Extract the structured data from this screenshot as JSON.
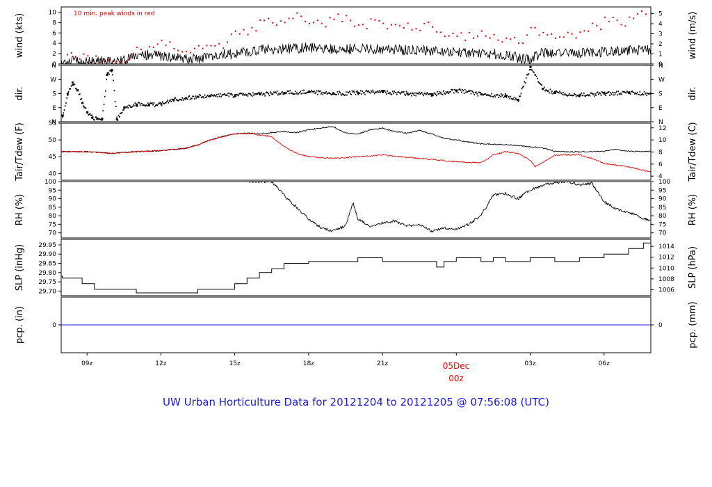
{
  "figure": {
    "title": "UW Urban Horticulture Data for 20121204  to  20121205 @ 07:56:08  (UTC)",
    "date_label": "05Dec",
    "date_sublabel": "00z",
    "colors": {
      "main": "#000000",
      "accent": "#e00000",
      "precip": "#1a1ad8",
      "title": "#1a1ad8"
    }
  },
  "x_axis": {
    "ticks": [
      {
        "label": "09z",
        "h": 9
      },
      {
        "label": "12z",
        "h": 12
      },
      {
        "label": "15z",
        "h": 15
      },
      {
        "label": "18z",
        "h": 18
      },
      {
        "label": "21z",
        "h": 21
      },
      {
        "label": "03z",
        "h": 27
      },
      {
        "label": "06z",
        "h": 30
      }
    ],
    "range_hours": [
      7.95,
      31.9
    ]
  },
  "chart_data": [
    {
      "type": "line",
      "id": "wind",
      "ylabel": "wind (kts)",
      "ylabel_right": "wind (m/s)",
      "annotation": "10 min. peak winds in red",
      "ylim": [
        0,
        11
      ],
      "ylim_right": [
        0,
        5.66
      ],
      "yticks": [
        0,
        2,
        4,
        6,
        8,
        10
      ],
      "yticks_right": [
        0,
        1,
        2,
        3,
        4,
        5
      ],
      "series": [
        {
          "style": "line",
          "color": "#000000",
          "x": [
            7.95,
            8.5,
            9.0,
            9.5,
            10.0,
            10.5,
            11.0,
            11.5,
            12.0,
            12.5,
            13.0,
            13.5,
            14.0,
            14.5,
            15.0,
            15.5,
            16.0,
            17.0,
            18.0,
            19.0,
            20.0,
            21.0,
            22.0,
            23.0,
            24.0,
            25.0,
            26.0,
            26.5,
            27.0,
            27.5,
            28.0,
            29.0,
            30.0,
            31.0,
            31.9
          ],
          "y": [
            0.4,
            0.6,
            0.3,
            0.5,
            0.4,
            0.6,
            1.5,
            1.8,
            1.5,
            1.2,
            0.9,
            1.0,
            1.4,
            1.8,
            2.0,
            2.4,
            2.7,
            3.0,
            3.1,
            2.9,
            3.0,
            2.8,
            2.7,
            2.5,
            2.3,
            2.1,
            1.8,
            1.2,
            0.8,
            2.3,
            2.0,
            2.2,
            2.3,
            2.6,
            2.8
          ]
        },
        {
          "style": "points",
          "color": "#e00000",
          "x": [
            8.2,
            8.7,
            9.2,
            9.7,
            10.2,
            10.7,
            11.2,
            11.7,
            12.2,
            12.7,
            13.2,
            13.7,
            14.2,
            14.7,
            15.2,
            15.7,
            16.2,
            16.7,
            17.2,
            17.7,
            18.2,
            18.7,
            19.2,
            19.7,
            20.2,
            20.7,
            21.2,
            21.7,
            22.2,
            22.7,
            23.2,
            23.7,
            24.2,
            24.7,
            25.2,
            25.7,
            26.2,
            26.7,
            27.2,
            27.7,
            28.2,
            28.7,
            29.2,
            29.7,
            30.2,
            30.7,
            31.2,
            31.7
          ],
          "y": [
            1.8,
            1.0,
            0.6,
            0.9,
            0.5,
            0.8,
            2.8,
            3.2,
            3.6,
            2.6,
            2.2,
            3.0,
            3.5,
            4.2,
            5.8,
            7.0,
            8.4,
            7.5,
            8.8,
            9.2,
            8.0,
            7.2,
            9.6,
            8.4,
            7.6,
            8.5,
            6.8,
            7.4,
            6.6,
            7.8,
            6.2,
            5.4,
            6.0,
            5.0,
            5.4,
            4.6,
            4.8,
            4.0,
            7.0,
            5.6,
            5.2,
            5.8,
            6.4,
            7.4,
            8.2,
            7.6,
            8.8,
            9.6
          ]
        }
      ]
    },
    {
      "type": "scatter",
      "id": "direction",
      "ylabel": "dir.",
      "ylabel_right": "dir.",
      "ylim": [
        0,
        360
      ],
      "yticks_labels": [
        "N",
        "E",
        "S",
        "W",
        "N"
      ],
      "series": [
        {
          "style": "points",
          "color": "#000000",
          "x": [
            8.0,
            8.2,
            8.4,
            8.6,
            8.8,
            9.0,
            9.2,
            9.4,
            9.6,
            9.8,
            10.0,
            10.2,
            10.5,
            11.0,
            11.5,
            12.0,
            12.5,
            13.0,
            13.5,
            14.0,
            15.0,
            16.0,
            17.0,
            18.0,
            19.0,
            20.0,
            21.0,
            22.0,
            23.0,
            24.0,
            25.0,
            26.0,
            26.5,
            27.0,
            27.5,
            28.0,
            29.0,
            30.0,
            31.0,
            31.9
          ],
          "y": [
            40,
            180,
            250,
            200,
            120,
            60,
            25,
            20,
            20,
            300,
            330,
            15,
            90,
            110,
            105,
            115,
            140,
            150,
            160,
            165,
            170,
            175,
            185,
            190,
            180,
            185,
            190,
            180,
            175,
            200,
            175,
            165,
            140,
            350,
            210,
            185,
            170,
            180,
            185,
            180
          ]
        }
      ]
    },
    {
      "type": "line",
      "id": "temperature",
      "ylabel": "Tair/Tdew (F)",
      "ylabel_right": "Tair/Tdew (C)",
      "ylim": [
        38,
        55
      ],
      "ylim_right": [
        3.33,
        12.78
      ],
      "yticks": [
        40,
        45,
        50,
        55
      ],
      "yticks_right": [
        4,
        6,
        8,
        10,
        12
      ],
      "series": [
        {
          "style": "line",
          "color": "#000000",
          "x": [
            7.95,
            9.0,
            10.0,
            11.0,
            12.0,
            13.0,
            13.5,
            14.0,
            14.5,
            15.0,
            15.5,
            16.0,
            16.5,
            17.0,
            17.5,
            18.0,
            18.5,
            19.0,
            19.5,
            20.0,
            20.5,
            21.0,
            21.5,
            22.0,
            22.5,
            23.0,
            23.5,
            24.0,
            25.0,
            26.0,
            27.0,
            27.5,
            28.0,
            29.0,
            30.0,
            30.5,
            31.0,
            31.9
          ],
          "y": [
            46.5,
            46.5,
            46.0,
            46.5,
            46.8,
            47.5,
            48.5,
            50.0,
            51.0,
            51.8,
            52.0,
            51.8,
            52.2,
            52.5,
            52.2,
            53.0,
            53.6,
            54.0,
            52.0,
            51.8,
            53.0,
            53.5,
            52.5,
            52.0,
            52.8,
            51.8,
            50.5,
            50.0,
            48.8,
            48.6,
            48.0,
            47.6,
            46.6,
            46.4,
            46.6,
            47.2,
            46.6,
            46.6
          ]
        },
        {
          "style": "line",
          "color": "#e00000",
          "x": [
            7.95,
            9.0,
            10.0,
            11.0,
            12.0,
            13.0,
            13.5,
            14.0,
            14.5,
            15.0,
            15.5,
            16.0,
            16.5,
            17.0,
            17.5,
            18.0,
            19.0,
            20.0,
            21.0,
            22.0,
            23.0,
            24.0,
            25.0,
            25.5,
            26.0,
            26.5,
            27.0,
            27.2,
            28.0,
            29.0,
            29.5,
            30.0,
            31.0,
            31.9
          ],
          "y": [
            46.5,
            46.5,
            46.0,
            46.5,
            46.8,
            47.5,
            48.5,
            50.0,
            51.0,
            51.8,
            52.0,
            51.5,
            51.0,
            48.0,
            46.0,
            45.0,
            44.5,
            45.0,
            45.5,
            44.8,
            44.2,
            43.5,
            43.2,
            45.5,
            46.5,
            46.0,
            44.0,
            42.0,
            45.5,
            45.6,
            44.5,
            43.0,
            42.0,
            40.5
          ]
        }
      ]
    },
    {
      "type": "line",
      "id": "humidity",
      "ylabel": "RH (%)",
      "ylabel_right": "RH (%)",
      "ylim": [
        67,
        100
      ],
      "yticks": [
        70,
        75,
        80,
        85,
        90,
        95,
        100
      ],
      "series": [
        {
          "style": "line",
          "color": "#000000",
          "x": [
            15.5,
            16.0,
            16.5,
            17.0,
            17.5,
            18.0,
            18.5,
            19.0,
            19.5,
            19.8,
            20.0,
            20.5,
            21.0,
            21.5,
            22.0,
            22.5,
            23.0,
            23.5,
            24.0,
            24.5,
            25.0,
            25.5,
            26.0,
            26.5,
            27.0,
            27.5,
            28.0,
            28.5,
            29.0,
            29.5,
            30.0,
            30.5,
            31.0,
            31.5,
            31.9
          ],
          "y": [
            100,
            100,
            100,
            92,
            85,
            78,
            73,
            71,
            74,
            88,
            78,
            74,
            76,
            77,
            74,
            75,
            71,
            73,
            72,
            75,
            80,
            92,
            93,
            90,
            95,
            98,
            99,
            100,
            98,
            99,
            88,
            84,
            82,
            79,
            77
          ]
        }
      ]
    },
    {
      "type": "line",
      "id": "pressure",
      "ylabel": "SLP (inHg)",
      "ylabel_right": "SLP (hPa)",
      "ylim": [
        29.675,
        29.98
      ],
      "ylim_right": [
        1004.9,
        1015.3
      ],
      "yticks": [
        29.7,
        29.75,
        29.8,
        29.85,
        29.9,
        29.95
      ],
      "yticks_right": [
        1006,
        1008,
        1010,
        1012,
        1014
      ],
      "series": [
        {
          "style": "step",
          "color": "#000000",
          "x": [
            7.95,
            8.0,
            8.8,
            9.3,
            10.0,
            11.0,
            12.0,
            13.0,
            13.5,
            14.0,
            15.0,
            15.5,
            16.0,
            16.5,
            17.0,
            17.5,
            18.0,
            19.0,
            20.0,
            20.5,
            21.0,
            22.0,
            22.5,
            23.0,
            23.2,
            23.5,
            24.0,
            24.5,
            25.0,
            25.5,
            26.0,
            26.5,
            27.0,
            28.0,
            29.0,
            30.0,
            31.0,
            31.6,
            31.9
          ],
          "y": [
            29.78,
            29.77,
            29.74,
            29.71,
            29.71,
            29.69,
            29.69,
            29.69,
            29.71,
            29.71,
            29.74,
            29.77,
            29.8,
            29.82,
            29.85,
            29.85,
            29.86,
            29.86,
            29.88,
            29.88,
            29.86,
            29.86,
            29.86,
            29.86,
            29.83,
            29.86,
            29.88,
            29.88,
            29.86,
            29.88,
            29.86,
            29.86,
            29.88,
            29.86,
            29.88,
            29.9,
            29.93,
            29.96,
            29.96
          ]
        }
      ]
    },
    {
      "type": "line",
      "id": "precip",
      "ylabel": "pcp. (in)",
      "ylabel_right": "pcp. (mm)",
      "ylim": [
        -1,
        1
      ],
      "yticks": [
        0
      ],
      "yticks_right": [
        0
      ],
      "series": [
        {
          "style": "line",
          "color": "#1a1ad8",
          "x": [
            7.95,
            31.9
          ],
          "y": [
            0,
            0
          ]
        }
      ]
    }
  ]
}
